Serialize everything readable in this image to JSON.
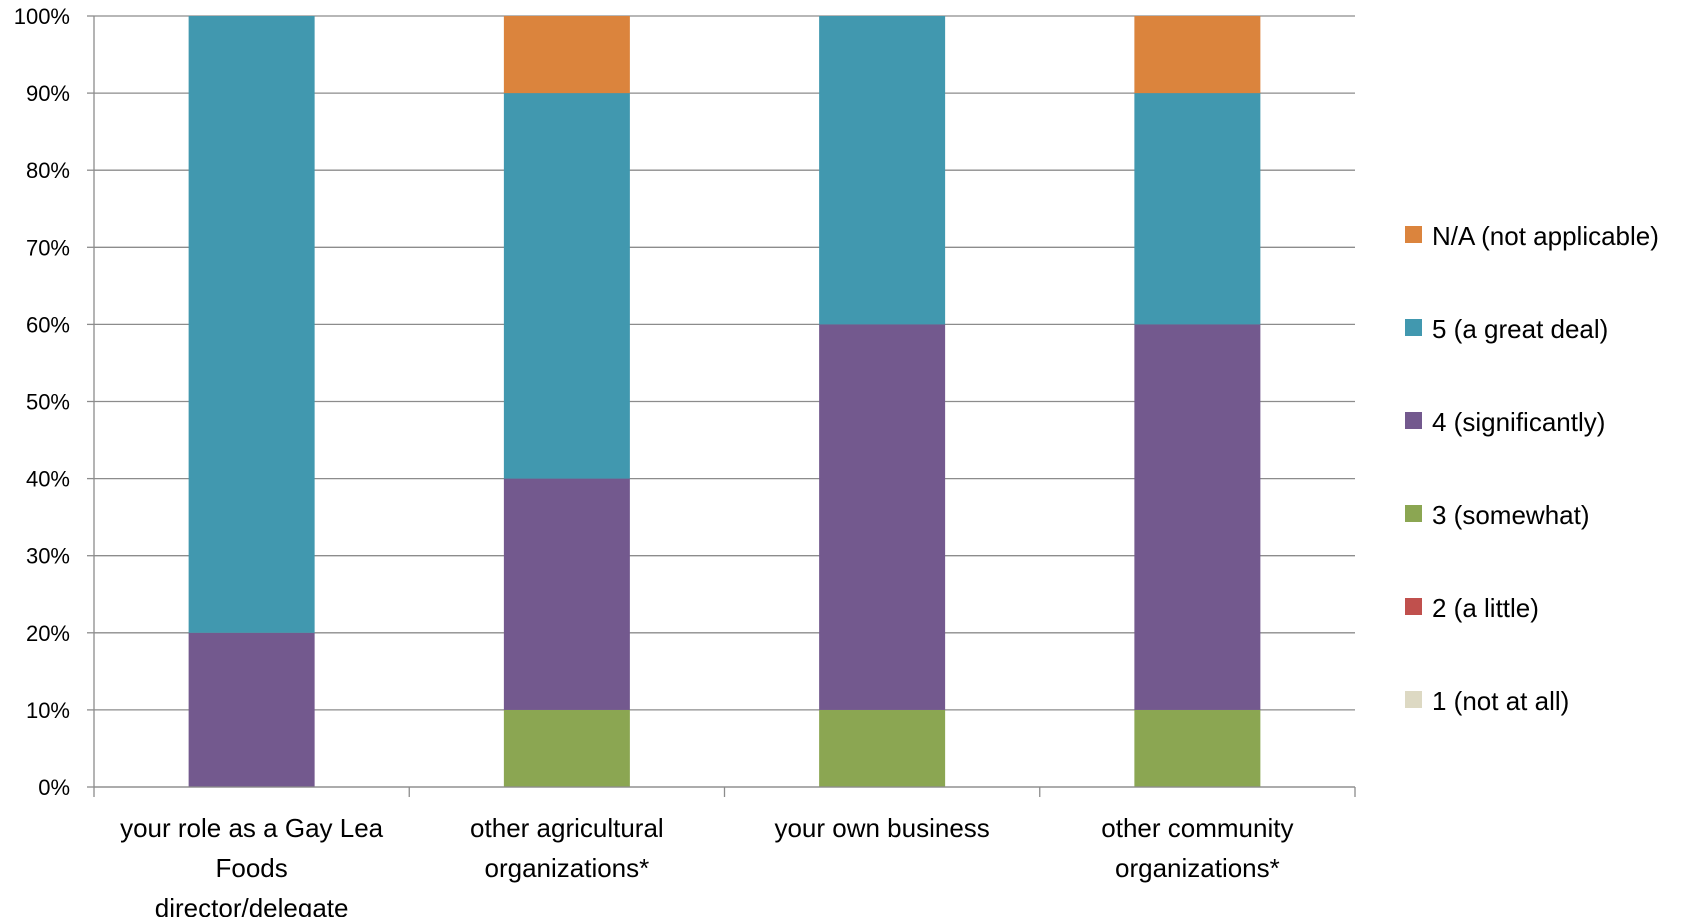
{
  "chart_data": {
    "type": "bar",
    "stacked": true,
    "percent_stacked": true,
    "categories": [
      [
        "your role as a Gay Lea",
        "Foods",
        "director/delegate"
      ],
      [
        "other agricultural",
        "organizations*"
      ],
      [
        "your own business"
      ],
      [
        "other community",
        "organizations*"
      ]
    ],
    "series": [
      {
        "name": "1 (not at all)",
        "color": "#DDD9C3",
        "values": [
          0,
          0,
          0,
          0
        ]
      },
      {
        "name": "2 (a little)",
        "color": "#C0504D",
        "values": [
          0,
          0,
          0,
          0
        ]
      },
      {
        "name": "3 (somewhat)",
        "color": "#8BA652",
        "values": [
          0,
          10,
          10,
          10
        ]
      },
      {
        "name": "4 (significantly)",
        "color": "#73598E",
        "values": [
          20,
          30,
          50,
          50
        ]
      },
      {
        "name": "5 (a great deal)",
        "color": "#4198AF",
        "values": [
          80,
          50,
          40,
          30
        ]
      },
      {
        "name": "N/A (not applicable)",
        "color": "#DB843D",
        "values": [
          0,
          10,
          0,
          10
        ]
      }
    ],
    "ylim": [
      0,
      100
    ],
    "yticks": [
      "0%",
      "10%",
      "20%",
      "30%",
      "40%",
      "50%",
      "60%",
      "70%",
      "80%",
      "90%",
      "100%"
    ],
    "grid": true,
    "legend_position": "right",
    "title": "",
    "xlabel": "",
    "ylabel": ""
  }
}
